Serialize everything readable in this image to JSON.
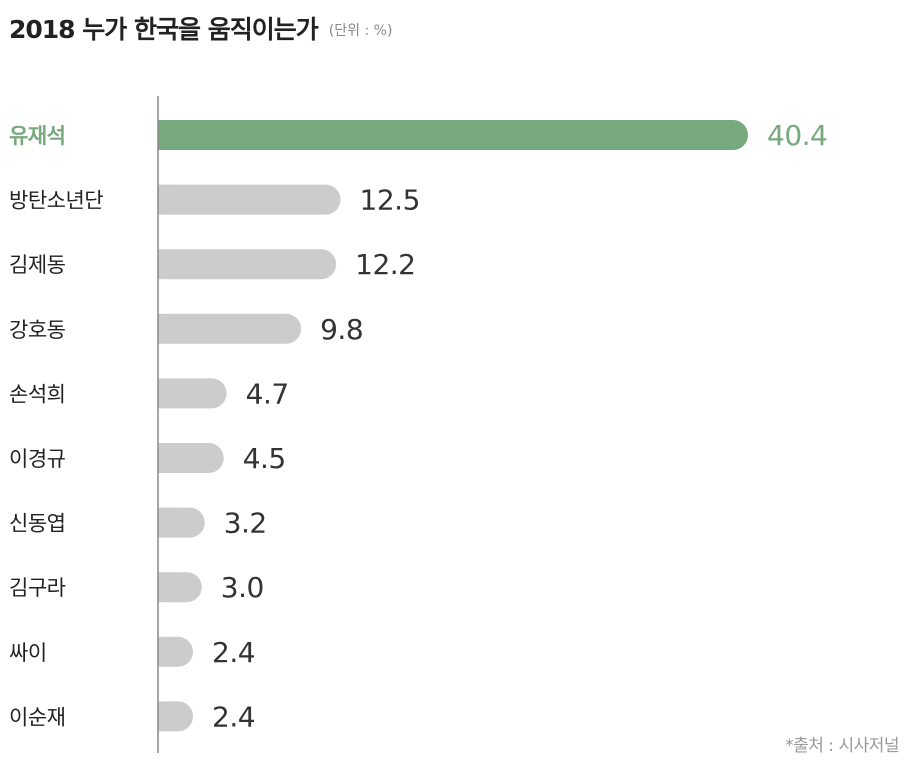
{
  "header": {
    "title": "2018 누가 한국을 움직이는가",
    "unit": "(단위 : %)"
  },
  "source": "*출처 : 시사저널",
  "colors": {
    "highlight": "#77a97e",
    "bar": "#cccccc",
    "axis": "#888888",
    "text": "#222222",
    "value_text": "#333333"
  },
  "chart_data": {
    "type": "bar",
    "orientation": "horizontal",
    "title": "2018 누가 한국을 움직이는가",
    "unit": "(단위 : %)",
    "categories": [
      "유재석",
      "방탄소년단",
      "김제동",
      "강호동",
      "손석희",
      "이경규",
      "신동엽",
      "김구라",
      "싸이",
      "이순재"
    ],
    "values": [
      40.4,
      12.5,
      12.2,
      9.8,
      4.7,
      4.5,
      3.2,
      3.0,
      2.4,
      2.4
    ],
    "value_labels": [
      "40.4",
      "12.5",
      "12.2",
      "9.8",
      "4.7",
      "4.5",
      "3.2",
      "3.0",
      "2.4",
      "2.4"
    ],
    "highlight_index": 0,
    "xlim": [
      0,
      40.4
    ],
    "grid": false,
    "legend": "none"
  }
}
